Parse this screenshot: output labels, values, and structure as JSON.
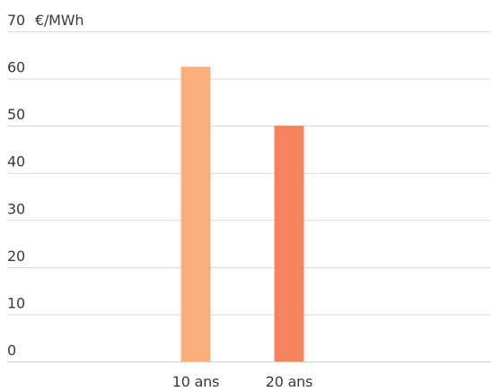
{
  "chart_data": {
    "type": "bar",
    "unit_label": "€/MWh",
    "categories": [
      "10 ans",
      "20 ans"
    ],
    "values": [
      62.5,
      50
    ],
    "colors": [
      "#f9ae7c",
      "#f4845f"
    ],
    "ylim": [
      0,
      70
    ],
    "yticks": [
      0,
      10,
      20,
      30,
      40,
      50,
      60,
      70
    ],
    "grid": true,
    "legend": "none"
  }
}
